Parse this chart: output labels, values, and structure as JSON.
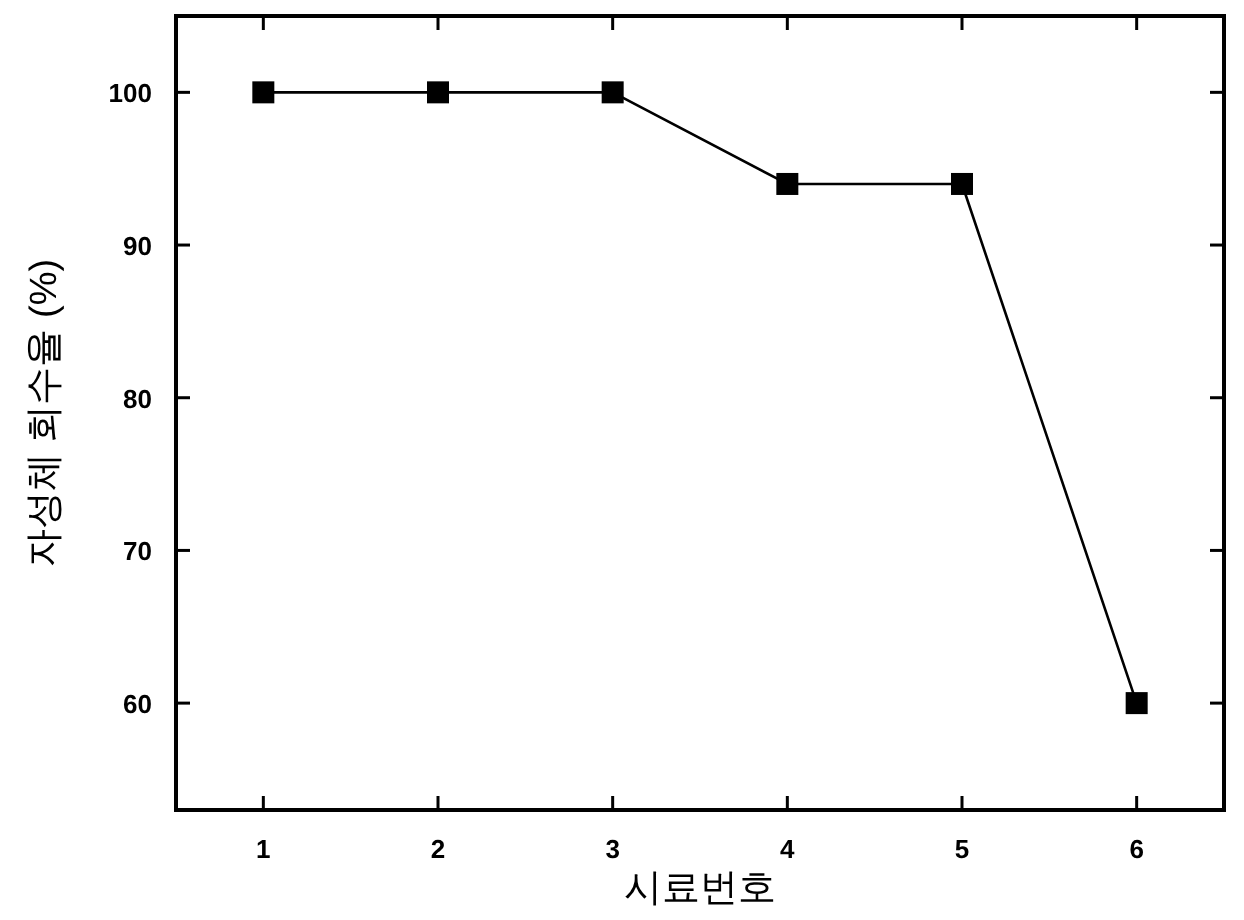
{
  "chart_data": {
    "type": "line",
    "xlabel": "시료번호",
    "ylabel": "자성체 회수율 (%)",
    "x": [
      1,
      2,
      3,
      4,
      5,
      6
    ],
    "series": [
      {
        "color": "#000000",
        "values": [
          100,
          100,
          100,
          94,
          94,
          60
        ]
      }
    ],
    "xlim": [
      0.5,
      6.5
    ],
    "xticks": [
      1,
      2,
      3,
      4,
      5,
      6
    ],
    "ylim": [
      53,
      105
    ],
    "yticks": [
      60,
      70,
      80,
      90,
      100
    ],
    "marker": "square",
    "line_style": "solid",
    "grid": false
  }
}
